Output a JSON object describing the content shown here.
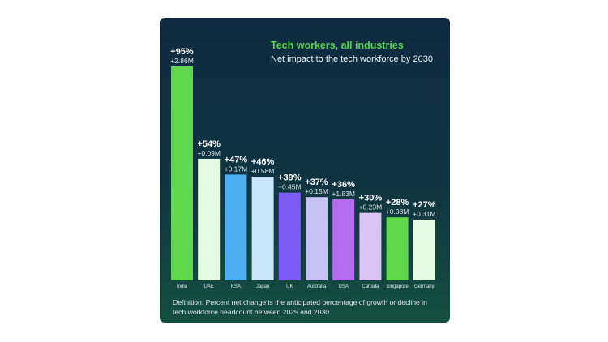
{
  "chart_data": {
    "type": "bar",
    "title": "Tech workers, all industries",
    "subtitle": "Net impact to the tech workforce by 2030",
    "categories": [
      "India",
      "UAE",
      "KSA",
      "Japan",
      "UK",
      "Australia",
      "USA",
      "Canada",
      "Singapore",
      "Germany"
    ],
    "values": [
      95,
      54,
      47,
      46,
      39,
      37,
      36,
      30,
      28,
      27
    ],
    "value_labels": [
      "+95%",
      "+54%",
      "+47%",
      "+46%",
      "+39%",
      "+37%",
      "+36%",
      "+30%",
      "+28%",
      "+27%"
    ],
    "headcount_labels": [
      "+2.86M",
      "+0.09M",
      "+0.17M",
      "+0.58M",
      "+0.45M",
      "+0.15M",
      "+1.83M",
      "+0.23M",
      "+0.08M",
      "+0.31M"
    ],
    "bar_colors": [
      "#5fd94a",
      "#e2fbe0",
      "#4aaef2",
      "#c9e6fb",
      "#7c5cf6",
      "#c6c2f5",
      "#b46bf0",
      "#dcc4f6",
      "#5fd94a",
      "#e2fbe0"
    ],
    "xlabel": "",
    "ylabel": "",
    "ylim": [
      0,
      95
    ],
    "grid": false
  },
  "footnote": "Definition: Percent net change is the anticipated percentage of growth or decline in tech workforce headcount between 2025 and 2030.",
  "colors": {
    "title_green": "#4fd84a",
    "card_background": "#0f2a40"
  }
}
